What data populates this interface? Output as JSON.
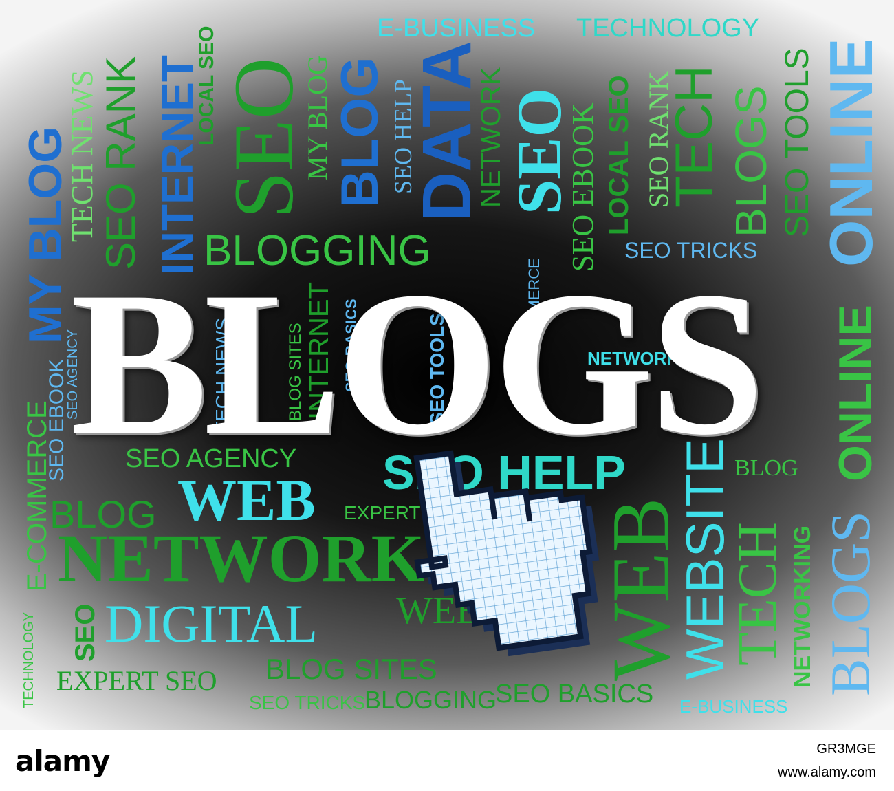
{
  "title": "BLOGS",
  "words": [
    "E-BUSINESS",
    "TECHNOLOGY",
    "TECH NEWS",
    "SEO RANK",
    "INTERNET",
    "LOCAL SEO",
    "SEO",
    "MY BLOG",
    "BLOG",
    "SEO HELP",
    "DATA",
    "NETWORK",
    "SEO EBOOK",
    "LOCAL SEO",
    "SEO RANK",
    "TECH",
    "BLOGS",
    "SEO TOOLS",
    "ONLINE",
    "MY BLOG",
    "BLOGGING",
    "SEO TRICKS",
    "E-COMMERCE",
    "SEO BASICS",
    "TECH NEWS",
    "SEO AGENCY",
    "BLOG SITES",
    "INTERNET",
    "SEO TOOLS",
    "E-COMMERCE",
    "NETWORKING",
    "ONLINE",
    "E-COMMERCE",
    "SEO EBOOK",
    "SEO AGENCY",
    "WEB",
    "SEO HELP",
    "BLOG",
    "EXPERT SEO",
    "NETWORK",
    "WEBSITE",
    "TECH",
    "NETWORKING",
    "BLOGS",
    "DIGITAL",
    "WEB",
    "SEO",
    "TECHNOLOGY",
    "EXPERT SEO",
    "BLOG SITES",
    "SEO TRICKS",
    "BLOGGING",
    "SEO BASICS",
    "E-BUSINESS",
    "WEB",
    "BLOG"
  ],
  "watermark": "alamy",
  "footer": {
    "brand": "alamy",
    "image_id": "GR3MGE",
    "site": "www.alamy.com"
  },
  "icons": {
    "cursor": "pointing-hand-cursor-icon"
  }
}
